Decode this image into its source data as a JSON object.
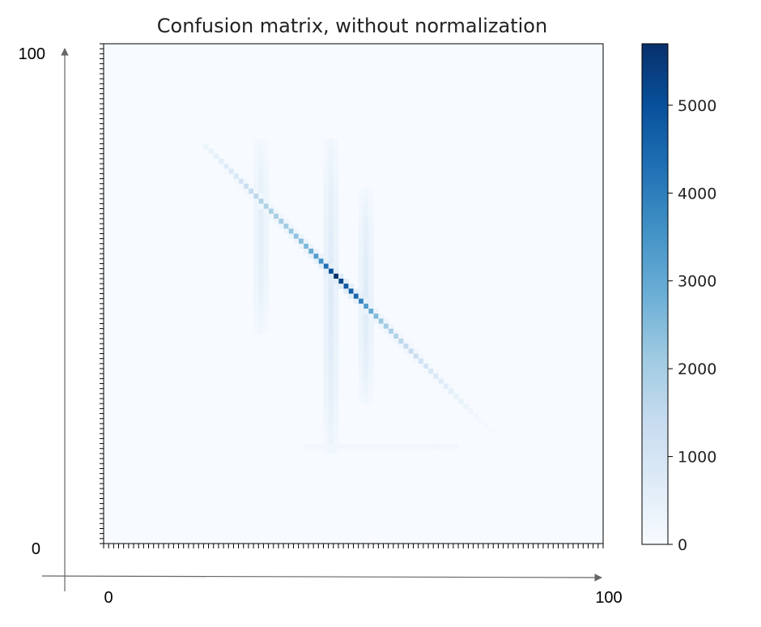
{
  "chart_data": {
    "type": "heatmap",
    "title": "Confusion matrix, without normalization",
    "colormap": "Blues",
    "colors": {
      "low": "#f7fbff",
      "mid": "#6baed6",
      "high": "#08306b",
      "arrow": "#666666"
    },
    "n_classes": 100,
    "x_range": [
      0,
      100
    ],
    "y_range": [
      0,
      100
    ],
    "x_axis_labels": {
      "start": "0",
      "end": "100"
    },
    "y_axis_labels": {
      "start": "0",
      "end": "100"
    },
    "colorbar": {
      "min": 0,
      "max": 5700,
      "ticks": [
        0,
        1000,
        2000,
        3000,
        4000,
        5000
      ]
    },
    "diagonal": {
      "from_class": 20,
      "to_class": 78,
      "peak_class": 46,
      "peak_value": 5700,
      "profile": [
        [
          20,
          300
        ],
        [
          26,
          900
        ],
        [
          31,
          1800
        ],
        [
          36,
          2100
        ],
        [
          40,
          2600
        ],
        [
          43,
          3600
        ],
        [
          46,
          5700
        ],
        [
          48,
          4800
        ],
        [
          50,
          4500
        ],
        [
          52,
          3300
        ],
        [
          55,
          2200
        ],
        [
          60,
          1500
        ],
        [
          65,
          900
        ],
        [
          70,
          450
        ],
        [
          75,
          150
        ],
        [
          78,
          50
        ]
      ]
    },
    "predicted_columns": [
      {
        "column": 31,
        "row_from": 42,
        "row_to": 80,
        "value": 550
      },
      {
        "column": 45,
        "row_from": 18,
        "row_to": 80,
        "value": 700
      },
      {
        "column": 52,
        "row_from": 28,
        "row_to": 70,
        "value": 650
      }
    ],
    "faint_band": {
      "row": 19,
      "col_from": 40,
      "col_to": 70,
      "value": 180
    },
    "grid": false,
    "legend": "colorbar-right"
  }
}
